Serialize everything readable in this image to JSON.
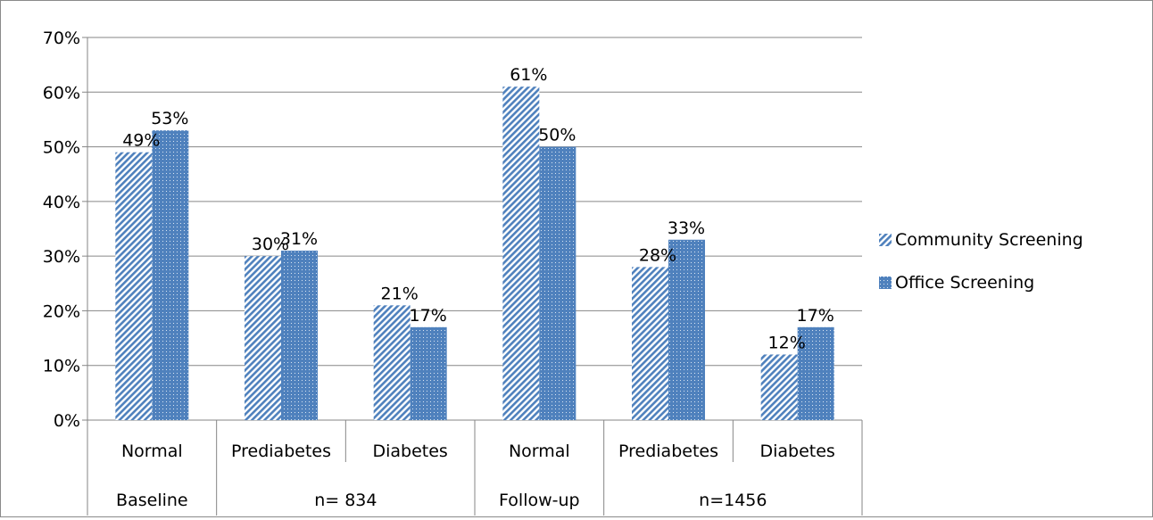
{
  "chart_data": {
    "type": "bar",
    "categories": [
      "Normal",
      "Prediabetes",
      "Diabetes",
      "Normal",
      "Prediabetes",
      "Diabetes"
    ],
    "category_groups": [
      {
        "label": "Baseline",
        "span": [
          0,
          0
        ]
      },
      {
        "label": "n= 834",
        "span": [
          1,
          2
        ]
      },
      {
        "label": "Follow-up",
        "span": [
          3,
          3
        ]
      },
      {
        "label": "n=1456",
        "span": [
          4,
          5
        ]
      }
    ],
    "series": [
      {
        "name": "Community Screening",
        "values": [
          49,
          30,
          21,
          61,
          28,
          12
        ],
        "color": "#4f81bd",
        "pattern": "diagonal-hatch"
      },
      {
        "name": "Office Screening",
        "values": [
          53,
          31,
          17,
          50,
          33,
          17
        ],
        "color": "#4f81bd",
        "pattern": "dotted-fill"
      }
    ],
    "data_labels": [
      [
        "49%",
        "30%",
        "21%",
        "61%",
        "28%",
        "12%"
      ],
      [
        "53%",
        "31%",
        "17%",
        "50%",
        "33%",
        "17%"
      ]
    ],
    "y_ticks": [
      "0%",
      "10%",
      "20%",
      "30%",
      "40%",
      "50%",
      "60%",
      "70%"
    ],
    "ylim": [
      0,
      70
    ],
    "y_tick_step": 10,
    "grid": true,
    "legend_position": "right",
    "title": "",
    "xlabel": "",
    "ylabel": ""
  }
}
